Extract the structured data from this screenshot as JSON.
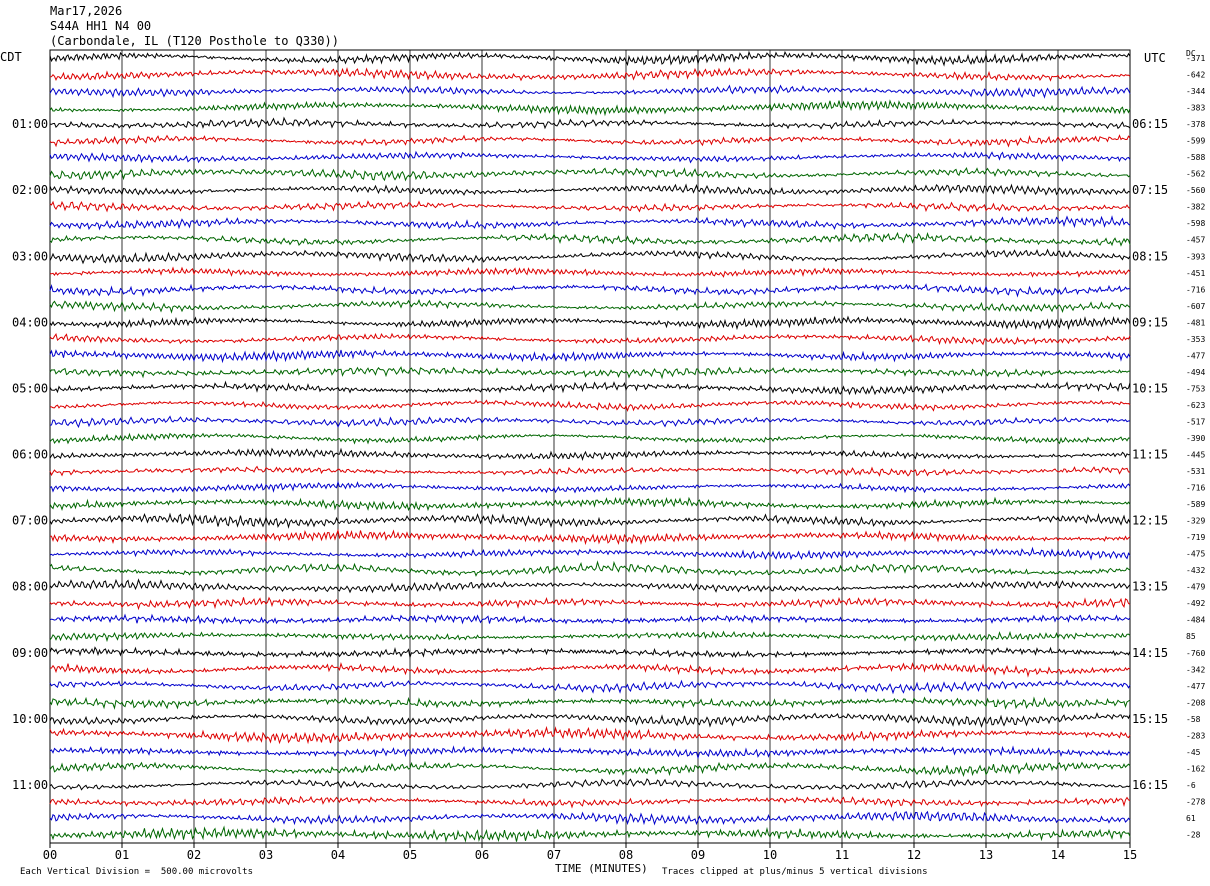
{
  "header": {
    "line1": "Mar17,2026",
    "line2": "S44A HH1 N4 00",
    "line3": "(Carbondale, IL (T120 Posthole to Q330))"
  },
  "left_axis_label": "CDT",
  "right_axis_label": "UTC",
  "dc_label": "DC",
  "x_axis_title": "TIME (MINUTES)",
  "footer": {
    "scale": "Each Vertical Division =  500.00 microvolts",
    "clip_note": "Traces clipped at plus/minus 5 vertical divisions"
  },
  "colors": {
    "black": "#000000",
    "red": "#dd0000",
    "blue": "#0000cc",
    "green": "#006600"
  },
  "chart_data": {
    "type": "line",
    "title": "S44A HH1 N4 00",
    "xlabel": "TIME (MINUTES)",
    "xlim": [
      0,
      15
    ],
    "x_ticks": [
      "00",
      "01",
      "02",
      "03",
      "04",
      "05",
      "06",
      "07",
      "08",
      "09",
      "10",
      "11",
      "12",
      "13",
      "14",
      "15"
    ],
    "trace_minutes": 15,
    "trace_count": 48,
    "trace_color_cycle": [
      "black",
      "red",
      "blue",
      "green"
    ],
    "left_hour_labels": [
      "01:00",
      "02:00",
      "03:00",
      "04:00",
      "05:00",
      "06:00",
      "07:00",
      "08:00",
      "09:00",
      "10:00",
      "11:00"
    ],
    "right_hour_labels": [
      "06:15",
      "07:15",
      "08:15",
      "09:15",
      "10:15",
      "11:15",
      "12:15",
      "13:15",
      "14:15",
      "15:15",
      "16:15"
    ],
    "dc_offsets": [
      "-371",
      "-642",
      "-344",
      "-383",
      "-378",
      "-599",
      "-588",
      "-562",
      "-560",
      "-382",
      "-598",
      "-457",
      "-393",
      "-451",
      "-716",
      "-607",
      "-481",
      "-353",
      "-477",
      "-494",
      "-753",
      "-623",
      "-517",
      "-390",
      "-445",
      "-531",
      "-716",
      "-589",
      "-329",
      "-719",
      "-475",
      "-432",
      "-479",
      "-492",
      "-484",
      "85",
      "-760",
      "-342",
      "-477",
      "-208",
      "-58",
      "-283",
      "-45",
      "-162",
      "-6",
      "-278",
      "61",
      "-28"
    ]
  }
}
